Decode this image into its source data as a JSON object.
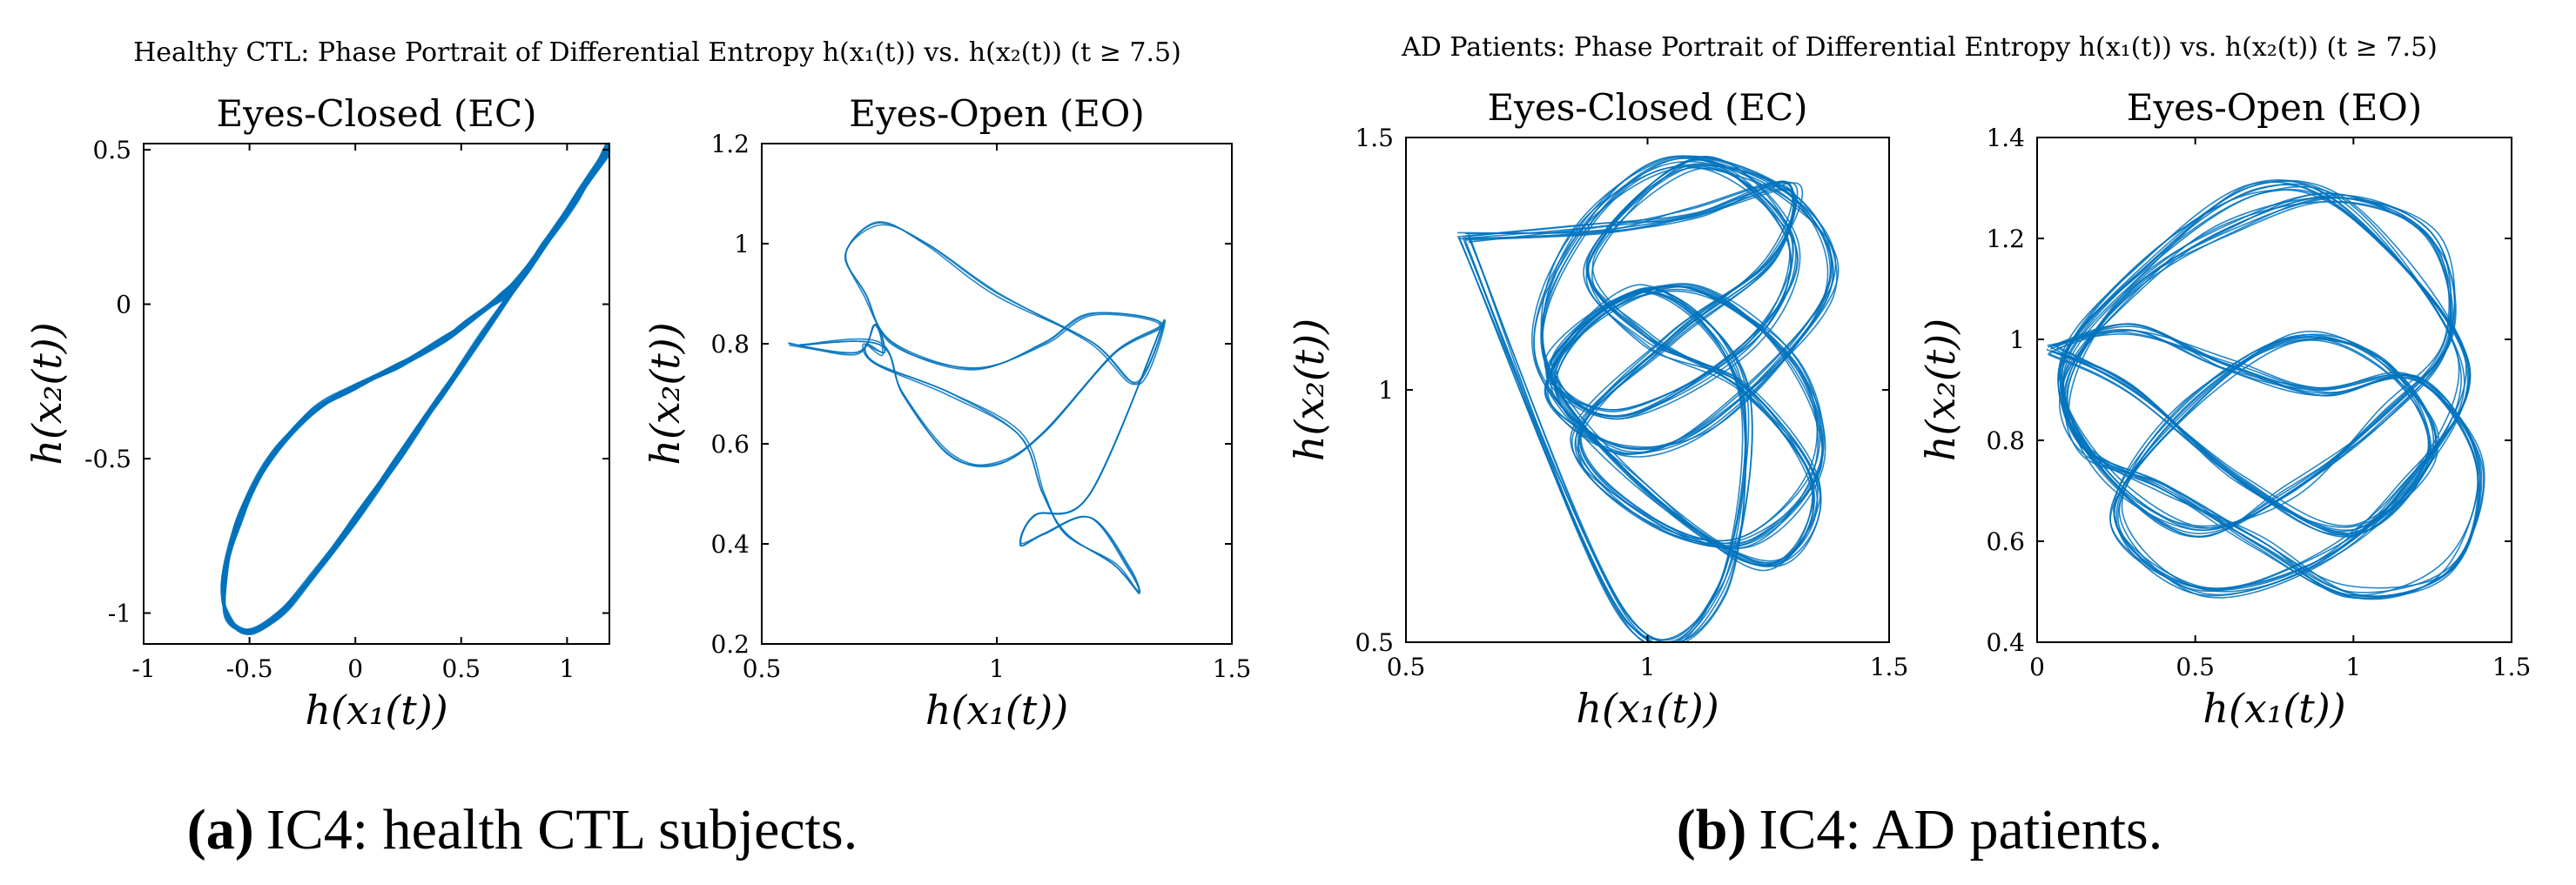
{
  "figure": {
    "suptitle_a": "Healthy CTL: Phase Portrait of Differential Entropy h(x₁(t)) vs. h(x₂(t)) (t ≥ 7.5)",
    "suptitle_b": "AD Patients: Phase Portrait of Differential Entropy h(x₁(t)) vs. h(x₂(t)) (t ≥ 7.5)",
    "caption_a_label": "(a)",
    "caption_a_text": "IC4: health CTL subjects.",
    "caption_b_label": "(b)",
    "caption_b_text": "IC4: AD patients.",
    "line_color": "#0072bd"
  },
  "chart_data": [
    {
      "type": "line",
      "group": "Healthy CTL",
      "title": "Eyes-Closed (EC)",
      "xlabel": "h(x₁(t))",
      "ylabel": "h(x₂(t))",
      "xlim": [
        -1,
        1.2
      ],
      "ylim": [
        -1.1,
        0.52
      ],
      "xticks": [
        -1,
        -0.5,
        0,
        0.5,
        1
      ],
      "xtick_labels": [
        "-1",
        "-0.5",
        "0",
        "0.5",
        "1"
      ],
      "yticks": [
        -1,
        -0.5,
        0,
        0.5
      ],
      "ytick_labels": [
        "-1",
        "-0.5",
        "0",
        "0.5"
      ],
      "series": [
        {
          "name": "IC4 EC",
          "x": [
            1.2,
            1.05,
            0.9,
            0.8,
            0.7,
            0.55,
            0.4,
            0.2,
            0.0,
            -0.2,
            -0.4,
            -0.55,
            -0.62,
            -0.6,
            -0.5,
            -0.35,
            -0.2,
            0.0,
            0.2,
            0.4,
            0.6,
            0.8,
            1.0,
            1.2
          ],
          "y": [
            0.52,
            0.35,
            0.2,
            0.1,
            0.03,
            -0.05,
            -0.12,
            -0.2,
            -0.27,
            -0.35,
            -0.5,
            -0.7,
            -0.9,
            -1.02,
            -1.06,
            -1.0,
            -0.88,
            -0.7,
            -0.5,
            -0.3,
            -0.1,
            0.1,
            0.3,
            0.5
          ]
        }
      ]
    },
    {
      "type": "line",
      "group": "Healthy CTL",
      "title": "Eyes-Open (EO)",
      "xlabel": "h(x₁(t))",
      "ylabel": "h(x₂(t))",
      "xlim": [
        0.5,
        1.5
      ],
      "ylim": [
        0.2,
        1.2
      ],
      "xticks": [
        0.5,
        1,
        1.5
      ],
      "xtick_labels": [
        "0.5",
        "1",
        "1.5"
      ],
      "yticks": [
        0.2,
        0.4,
        0.6,
        0.8,
        1,
        1.2
      ],
      "ytick_labels": [
        "0.2",
        "0.4",
        "0.6",
        "0.8",
        "1",
        "1.2"
      ],
      "series": [
        {
          "name": "IC4 EO",
          "x": [
            0.56,
            0.7,
            0.74,
            0.76,
            0.72,
            0.74,
            0.9,
            1.05,
            1.1,
            1.15,
            1.25,
            1.3,
            1.28,
            1.2,
            1.1,
            1.05,
            1.08,
            1.2,
            1.35,
            1.3,
            1.2,
            1.0,
            0.85,
            0.75,
            0.68,
            0.72,
            0.78,
            0.95,
            1.1,
            1.2,
            1.35,
            1.25,
            1.1,
            1.0,
            0.9,
            0.8,
            0.75,
            0.58
          ],
          "y": [
            0.8,
            0.78,
            0.84,
            0.78,
            0.8,
            0.76,
            0.7,
            0.62,
            0.5,
            0.42,
            0.36,
            0.3,
            0.35,
            0.45,
            0.42,
            0.4,
            0.46,
            0.5,
            0.84,
            0.72,
            0.8,
            0.9,
            1.0,
            1.04,
            0.98,
            0.9,
            0.8,
            0.75,
            0.8,
            0.86,
            0.84,
            0.78,
            0.62,
            0.56,
            0.58,
            0.7,
            0.8,
            0.8
          ]
        }
      ]
    },
    {
      "type": "line",
      "group": "AD Patients",
      "title": "Eyes-Closed (EC)",
      "xlabel": "h(x₁(t))",
      "ylabel": "h(x₂(t))",
      "xlim": [
        0.5,
        1.5
      ],
      "ylim": [
        0.5,
        1.5
      ],
      "xticks": [
        0.5,
        1,
        1.5
      ],
      "xtick_labels": [
        "0.5",
        "1",
        "1.5"
      ],
      "yticks": [
        0.5,
        1,
        1.5
      ],
      "ytick_labels": [
        "0.5",
        "1",
        "1.5"
      ],
      "series": [
        {
          "name": "IC4 EC",
          "x": [
            0.62,
            0.9,
            1.1,
            1.3,
            1.25,
            1.05,
            0.85,
            1.0,
            1.2,
            1.35,
            1.3,
            1.1,
            0.9,
            0.8,
            0.95,
            1.15,
            1.38,
            1.3,
            1.05,
            0.85,
            0.78,
            1.0,
            1.25,
            1.35,
            1.2,
            1.0,
            0.88,
            1.1,
            1.3,
            1.22,
            0.95,
            0.8,
            1.0,
            1.2,
            1.15,
            0.95,
            0.62
          ],
          "y": [
            1.3,
            1.32,
            1.35,
            1.4,
            1.25,
            1.1,
            0.9,
            0.75,
            0.7,
            0.85,
            1.05,
            1.2,
            1.15,
            1.0,
            0.88,
            0.95,
            1.2,
            1.38,
            1.45,
            1.3,
            1.05,
            0.8,
            0.65,
            0.8,
            1.0,
            1.1,
            1.25,
            1.45,
            1.3,
            1.1,
            0.95,
            1.05,
            1.2,
            1.0,
            0.6,
            0.55,
            1.3
          ]
        }
      ]
    },
    {
      "type": "line",
      "group": "AD Patients",
      "title": "Eyes-Open (EO)",
      "xlabel": "h(x₁(t))",
      "ylabel": "h(x₂(t))",
      "xlim": [
        0,
        1.5
      ],
      "ylim": [
        0.4,
        1.4
      ],
      "xticks": [
        0,
        0.5,
        1,
        1.5
      ],
      "xtick_labels": [
        "0",
        "0.5",
        "1",
        "1.5"
      ],
      "yticks": [
        0.4,
        0.6,
        0.8,
        1,
        1.2,
        1.4
      ],
      "ytick_labels": [
        "0.4",
        "0.6",
        "0.8",
        "1",
        "1.2",
        "1.4"
      ],
      "series": [
        {
          "name": "IC4 EO",
          "x": [
            0.05,
            0.3,
            0.6,
            0.9,
            1.2,
            1.4,
            1.3,
            1.0,
            0.7,
            0.4,
            0.15,
            0.1,
            0.3,
            0.6,
            0.95,
            1.25,
            1.3,
            1.1,
            0.8,
            0.5,
            0.2,
            0.08,
            0.35,
            0.7,
            1.0,
            1.35,
            1.15,
            0.85,
            0.5,
            0.25,
            0.45,
            0.8,
            1.1,
            1.25,
            1.0,
            0.65,
            0.3,
            0.05
          ],
          "y": [
            0.98,
            1.02,
            0.95,
            0.9,
            0.92,
            0.75,
            0.55,
            0.5,
            0.6,
            0.7,
            0.78,
            0.92,
            1.1,
            1.22,
            1.28,
            1.2,
            1.0,
            0.85,
            0.7,
            0.62,
            0.75,
            0.95,
            1.15,
            1.3,
            1.25,
            0.95,
            0.7,
            0.55,
            0.5,
            0.65,
            0.85,
            1.0,
            0.95,
            0.78,
            0.62,
            0.72,
            0.9,
            0.98
          ]
        }
      ]
    }
  ]
}
